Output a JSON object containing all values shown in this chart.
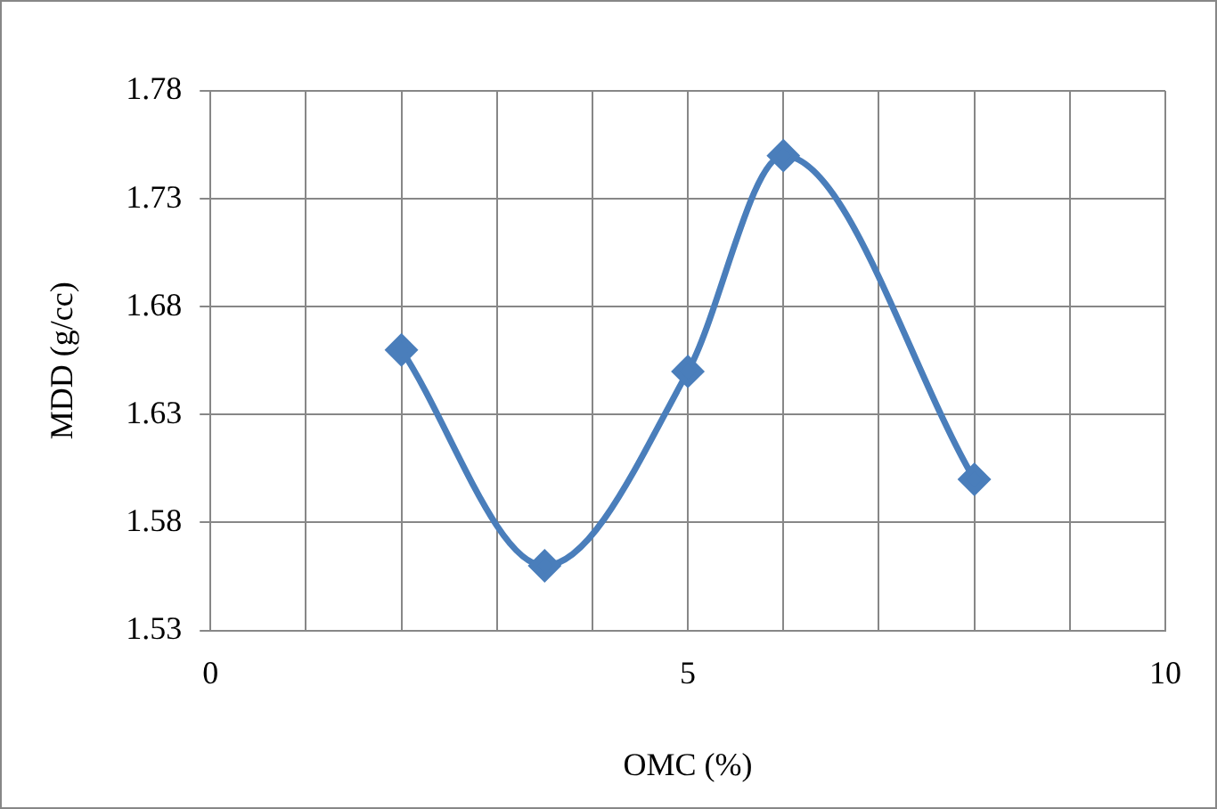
{
  "chart_data": {
    "type": "line",
    "xlabel": "OMC (%)",
    "ylabel": "MDD (g/cc)",
    "x": [
      2,
      3.5,
      5,
      6,
      8
    ],
    "series": [
      {
        "color": "#4a7ebb",
        "values": [
          1.66,
          1.56,
          1.65,
          1.75,
          1.6
        ]
      }
    ],
    "xlim": [
      0,
      10
    ],
    "xticks": [
      0,
      {
        "value": 1,
        "label": null
      },
      {
        "value": 2,
        "label": null
      },
      {
        "value": 3,
        "label": null
      },
      {
        "value": 4,
        "label": null
      },
      5,
      {
        "value": 6,
        "label": null
      },
      {
        "value": 7,
        "label": null
      },
      {
        "value": 8,
        "label": null
      },
      {
        "value": 9,
        "label": null
      },
      10
    ],
    "ylim": [
      1.53,
      1.78
    ],
    "yticks": [
      1.53,
      1.58,
      1.63,
      1.68,
      1.73,
      1.78
    ],
    "grid": true,
    "legend": false,
    "marker": "diamond",
    "line_style": "solid"
  }
}
